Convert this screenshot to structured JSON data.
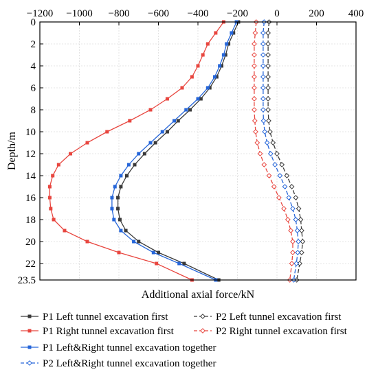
{
  "chart_data": {
    "type": "line",
    "title": "",
    "xlabel": "Additional axial force/kN",
    "ylabel": "Depth/m",
    "xlim": [
      -1200,
      400
    ],
    "ylim": [
      0,
      23.5
    ],
    "y_inverted": true,
    "x_axis_position": "top",
    "grid": true,
    "legend_position": "bottom",
    "x_ticks": [
      "−1200",
      "−1000",
      "−800",
      "−600",
      "−400",
      "−200",
      "0",
      "200",
      "400"
    ],
    "x_tick_values": [
      -1200,
      -1000,
      -800,
      -600,
      -400,
      -200,
      0,
      200,
      400
    ],
    "y_ticks": [
      "0",
      "2",
      "4",
      "6",
      "8",
      "10",
      "12",
      "14",
      "16",
      "18",
      "20",
      "22",
      "23.5"
    ],
    "y_tick_values": [
      0,
      2,
      4,
      6,
      8,
      10,
      12,
      14,
      16,
      18,
      20,
      22,
      23.5
    ],
    "depths": [
      0,
      1,
      2,
      3,
      4,
      5,
      6,
      7,
      8,
      9,
      10,
      11,
      12,
      13,
      14,
      15,
      16,
      17,
      18,
      19,
      20,
      21,
      22,
      23.5
    ],
    "series": [
      {
        "name": "P1 Left tunnel excavation first",
        "color": "#3a3a3a",
        "marker": "square-filled",
        "dashed": false,
        "values": [
          -195,
          -220,
          -245,
          -260,
          -280,
          -305,
          -340,
          -385,
          -440,
          -500,
          -555,
          -615,
          -670,
          -720,
          -760,
          -790,
          -805,
          -805,
          -795,
          -765,
          -700,
          -600,
          -470,
          -295
        ]
      },
      {
        "name": "P2 Left tunnel excavation first",
        "color": "#3a3a3a",
        "marker": "diamond-open",
        "dashed": true,
        "values": [
          -40,
          -45,
          -45,
          -45,
          -45,
          -45,
          -45,
          -45,
          -45,
          -42,
          -35,
          -20,
          0,
          25,
          50,
          75,
          95,
          110,
          120,
          125,
          130,
          125,
          115,
          100
        ]
      },
      {
        "name": "P1 Right tunnel excavation first",
        "color": "#e8463f",
        "marker": "square-filled",
        "dashed": false,
        "values": [
          -270,
          -310,
          -350,
          -375,
          -400,
          -430,
          -480,
          -555,
          -640,
          -745,
          -860,
          -960,
          -1045,
          -1105,
          -1135,
          -1150,
          -1150,
          -1145,
          -1130,
          -1075,
          -960,
          -800,
          -610,
          -430
        ]
      },
      {
        "name": "P2 Right tunnel excavation first",
        "color": "#e8463f",
        "marker": "diamond-open",
        "dashed": true,
        "values": [
          -105,
          -110,
          -115,
          -115,
          -115,
          -115,
          -115,
          -115,
          -115,
          -112,
          -108,
          -100,
          -85,
          -65,
          -40,
          -15,
          10,
          35,
          55,
          70,
          80,
          80,
          75,
          65
        ]
      },
      {
        "name": "P1 Left&Right tunnel excavation together",
        "color": "#2666d9",
        "marker": "square-filled",
        "dashed": false,
        "values": [
          -205,
          -230,
          -255,
          -270,
          -290,
          -315,
          -350,
          -400,
          -460,
          -520,
          -580,
          -640,
          -700,
          -750,
          -790,
          -820,
          -835,
          -835,
          -825,
          -790,
          -725,
          -625,
          -495,
          -310
        ]
      },
      {
        "name": "P2 Left&Right tunnel excavation together",
        "color": "#2666d9",
        "marker": "diamond-open",
        "dashed": true,
        "values": [
          -65,
          -70,
          -70,
          -70,
          -70,
          -70,
          -70,
          -70,
          -70,
          -68,
          -62,
          -50,
          -32,
          -10,
          15,
          40,
          60,
          80,
          95,
          103,
          108,
          105,
          98,
          85
        ]
      }
    ]
  }
}
